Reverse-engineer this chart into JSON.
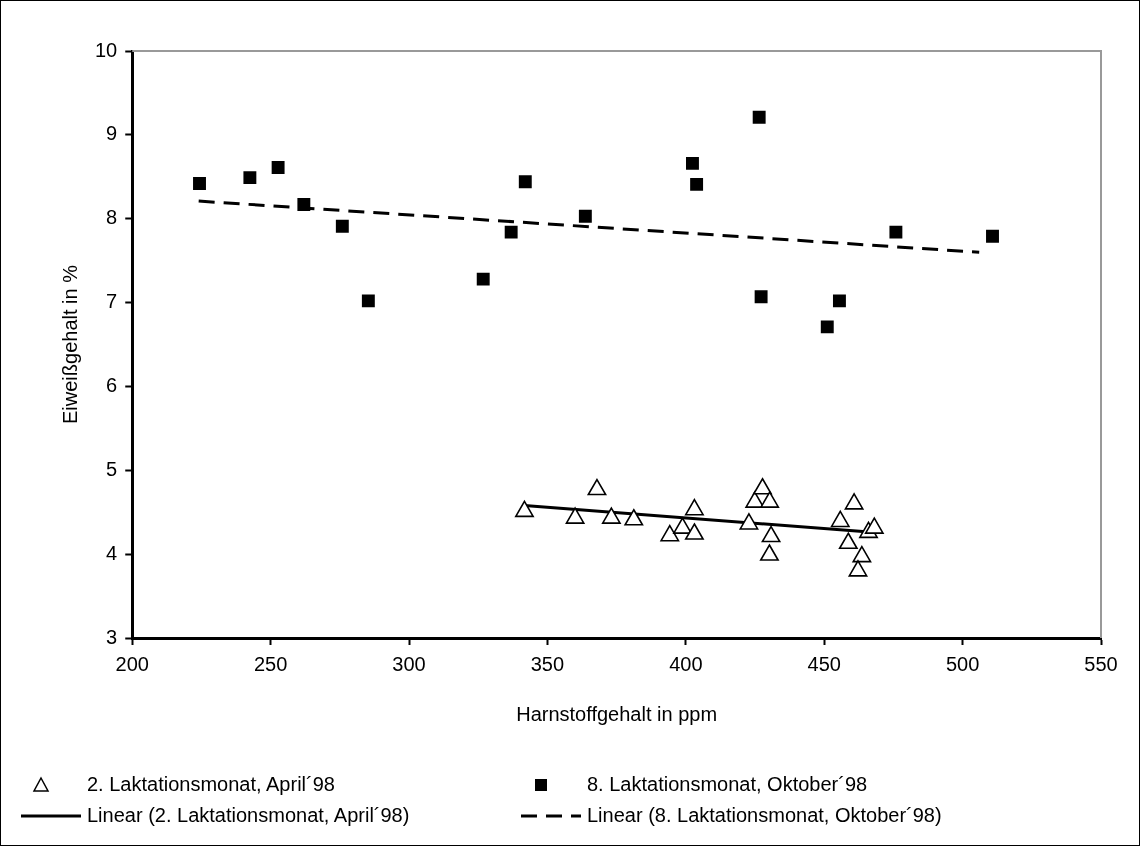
{
  "chart_data": {
    "type": "scatter",
    "xlabel": "Harnstoffgehalt in ppm",
    "ylabel": "Eiweißgehalt in %",
    "xlim": [
      200,
      550
    ],
    "xticks": [
      200,
      250,
      300,
      350,
      400,
      450,
      500,
      550
    ],
    "ylim": [
      3,
      10
    ],
    "yticks": [
      3,
      4,
      5,
      6,
      7,
      8,
      9,
      10
    ],
    "grid": false,
    "legend": "bottom",
    "series": [
      {
        "name": "2. Laktationsmonat, April´98",
        "type": "scatter",
        "marker": "triangle",
        "color": "#000000",
        "x": [
          341.7,
          360.0,
          367.9,
          373.1,
          381.2,
          394.2,
          398.8,
          403.1,
          403.1,
          422.8,
          424.9,
          427.7,
          430.3,
          430.8,
          430.2,
          455.8,
          460.8,
          458.7,
          466.0,
          468.1,
          463.6,
          462.2
        ],
        "values": [
          4.51,
          4.43,
          4.77,
          4.43,
          4.41,
          4.22,
          4.31,
          4.53,
          4.24,
          4.36,
          4.62,
          4.78,
          4.62,
          4.21,
          3.99,
          4.39,
          4.6,
          4.13,
          4.26,
          4.31,
          3.97,
          3.8
        ]
      },
      {
        "name": "8. Laktationsmonat, Oktober´98",
        "type": "scatter",
        "marker": "square",
        "color": "#000000",
        "x": [
          224.3,
          242.5,
          252.7,
          262.0,
          275.9,
          285.3,
          326.8,
          336.9,
          342.0,
          363.7,
          402.4,
          403.9,
          426.5,
          427.2,
          451.1,
          455.5,
          475.9,
          510.8
        ],
        "values": [
          8.42,
          8.49,
          8.61,
          8.17,
          7.91,
          7.02,
          7.28,
          7.84,
          8.44,
          8.03,
          8.66,
          8.41,
          9.21,
          7.07,
          6.71,
          7.02,
          7.84,
          7.79
        ]
      },
      {
        "name": "Linear (2. Laktationsmonat, April´98)",
        "type": "line",
        "marker": "none",
        "line_style": "solid",
        "color": "#000000",
        "x": [
          341.7,
          467.5
        ],
        "values": [
          4.58,
          4.26
        ]
      },
      {
        "name": "Linear (8. Laktationsmonat, Oktober´98)",
        "type": "line",
        "marker": "none",
        "line_style": "dashed",
        "color": "#000000",
        "x": [
          224,
          506
        ],
        "values": [
          8.21,
          7.6
        ]
      }
    ]
  }
}
